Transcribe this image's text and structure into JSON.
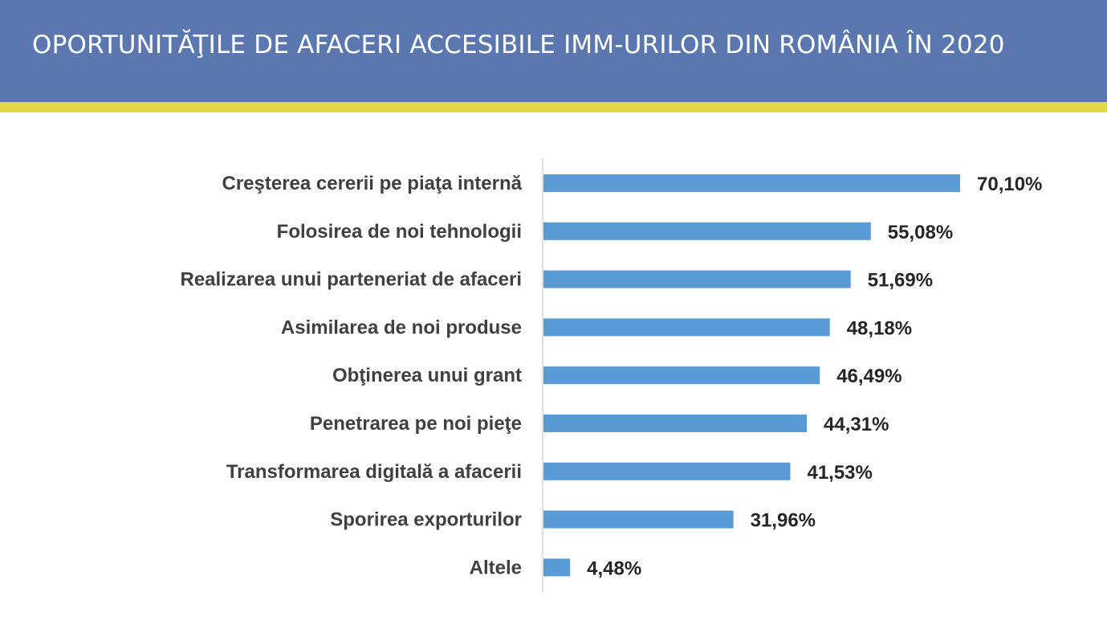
{
  "slide": {
    "title": "OPORTUNITĂŢILE DE AFACERI ACCESIBILE IMM-URILOR DIN ROMÂNIA ÎN 2020"
  },
  "colors": {
    "header": "#5b77b0",
    "stripe": "#e4d84a",
    "bar": "#5b9bd5",
    "axis": "#d9d9d9"
  },
  "chart_data": {
    "type": "bar",
    "orientation": "horizontal",
    "categories": [
      "Creşterea cererii pe piaţa internă",
      "Folosirea de noi tehnologii",
      "Realizarea unui parteneriat de afaceri",
      "Asimilarea de noi produse",
      "Obţinerea unui grant",
      "Penetrarea pe noi pieţe",
      "Transformarea digitală a afacerii",
      "Sporirea exporturilor",
      "Altele"
    ],
    "values": [
      70.1,
      55.08,
      51.69,
      48.18,
      46.49,
      44.31,
      41.53,
      31.96,
      4.48
    ],
    "value_labels": [
      "70,10%",
      "55,08%",
      "51,69%",
      "48,18%",
      "46,49%",
      "44,31%",
      "41,53%",
      "31,96%",
      "4,48%"
    ],
    "xlim": [
      0,
      70.1
    ],
    "grid": false,
    "legend": "none"
  }
}
